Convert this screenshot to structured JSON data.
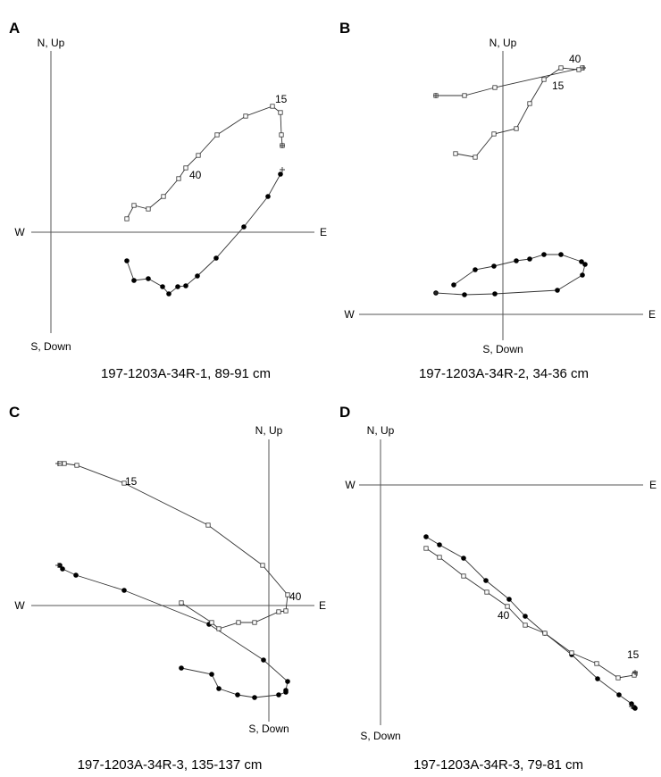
{
  "chart_data": [
    {
      "type": "scatter",
      "panel": "A",
      "caption": "197-1203A-34R-1, 89-91 cm",
      "axis_labels": {
        "north": "N, Up",
        "south": "S, Down",
        "west": "W",
        "east": "E"
      },
      "annotations": [
        {
          "text": "15",
          "x": 308,
          "y": 115
        },
        {
          "text": "40",
          "x": 212,
          "y": 200
        }
      ],
      "series": [
        {
          "marker": "filled",
          "x": [
            314,
            300,
            273,
            242,
            221,
            208,
            199,
            189,
            182,
            166,
            150,
            142
          ],
          "y": [
            195,
            220,
            254,
            289,
            309,
            320,
            321,
            329,
            321,
            312,
            314,
            292
          ]
        },
        {
          "marker": "open",
          "x": [
            316,
            315,
            314,
            305,
            275,
            243,
            222,
            208,
            200,
            183,
            166,
            150,
            142
          ],
          "y": [
            163,
            151,
            126,
            119,
            130,
            151,
            174,
            188,
            200,
            220,
            234,
            230,
            245
          ]
        }
      ],
      "start_crosses": [
        [
          316,
          190
        ],
        [
          316,
          163
        ]
      ]
    },
    {
      "type": "scatter",
      "panel": "B",
      "caption": "197-1203A-34R-2, 34-36 cm",
      "axis_labels": {
        "north": "N, Up",
        "south": "S, Down",
        "west": "W",
        "east": "E"
      },
      "annotations": [
        {
          "text": "40",
          "x": 637,
          "y": 70
        },
        {
          "text": "15",
          "x": 618,
          "y": 100
        }
      ],
      "series": [
        {
          "marker": "filled",
          "x": [
            488,
            520,
            554,
            624,
            652,
            655,
            651,
            628,
            609,
            593,
            578,
            553,
            532,
            508
          ],
          "y": [
            328,
            330,
            329,
            325,
            308,
            296,
            293,
            285,
            285,
            290,
            292,
            298,
            302,
            319
          ]
        },
        {
          "marker": "open",
          "x": [
            488,
            520,
            554,
            652,
            648,
            628,
            609,
            593,
            578,
            553,
            532,
            510
          ],
          "y": [
            107,
            107,
            98,
            76,
            78,
            76,
            89,
            116,
            144,
            150,
            176,
            172
          ]
        }
      ],
      "start_crosses": [
        [
          488,
          328
        ],
        [
          488,
          107
        ],
        [
          653,
          76
        ]
      ]
    },
    {
      "type": "scatter",
      "panel": "C",
      "caption": "197-1203A-34R-3, 135-137 cm",
      "axis_labels": {
        "north": "N, Up",
        "south": "S, Down",
        "west": "W",
        "east": "E"
      },
      "annotations": [
        {
          "text": "15",
          "x": 140,
          "y": 543
        },
        {
          "text": "40",
          "x": 324,
          "y": 672
        }
      ],
      "series": [
        {
          "marker": "filled",
          "x": [
            67,
            70,
            85,
            139,
            234,
            295,
            322,
            320,
            320,
            312,
            285,
            266,
            245,
            237,
            203
          ],
          "y": [
            633,
            637,
            644,
            661,
            699,
            739,
            763,
            773,
            775,
            778,
            781,
            778,
            771,
            755,
            748
          ]
        },
        {
          "marker": "open",
          "x": [
            67,
            72,
            86,
            139,
            233,
            294,
            322,
            320,
            312,
            285,
            267,
            245,
            237,
            203
          ],
          "y": [
            519,
            519,
            521,
            541,
            588,
            633,
            666,
            684,
            685,
            697,
            697,
            704,
            697,
            675
          ]
        }
      ],
      "start_crosses": [
        [
          65,
          633
        ],
        [
          65,
          519
        ]
      ]
    },
    {
      "type": "scatter",
      "panel": "D",
      "caption": "197-1203A-34R-3, 79-81 cm",
      "axis_labels": {
        "north": "N, Up",
        "south": "S, Down",
        "west": "W",
        "east": "E"
      },
      "annotations": [
        {
          "text": "40",
          "x": 557,
          "y": 693
        },
        {
          "text": "15",
          "x": 702,
          "y": 737
        }
      ],
      "series": [
        {
          "marker": "filled",
          "x": [
            711,
            710,
            707,
            693,
            669,
            640,
            610,
            588,
            570,
            544,
            519,
            492,
            477
          ],
          "y": [
            793,
            792,
            788,
            778,
            760,
            733,
            709,
            690,
            671,
            650,
            625,
            610,
            601
          ]
        },
        {
          "marker": "open",
          "x": [
            711,
            710,
            692,
            668,
            640,
            610,
            588,
            568,
            545,
            519,
            492,
            477
          ],
          "y": [
            754,
            756,
            759,
            743,
            731,
            709,
            700,
            679,
            663,
            645,
            624,
            614
          ]
        }
      ],
      "start_crosses": [
        [
          711,
          753
        ],
        [
          707,
          791
        ]
      ]
    }
  ]
}
